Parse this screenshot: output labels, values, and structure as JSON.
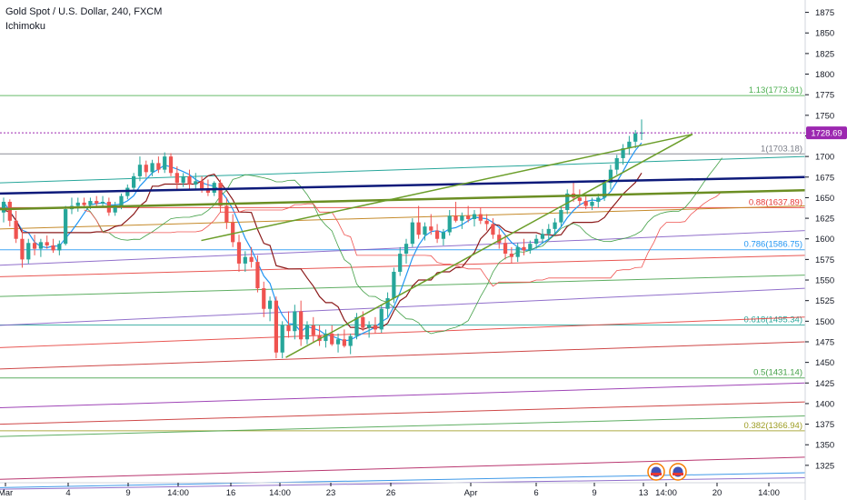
{
  "header": {
    "symbol_title": "Gold Spot / U.S. Dollar, 240, FXCM",
    "indicator": "Ichimoku"
  },
  "colors": {
    "up": "#26a69a",
    "down": "#ef5350",
    "tenkan": "#2196f3",
    "kijun": "#8b1a1a",
    "span_a": "#43a047",
    "span_b": "#ef5350",
    "navy": "#0d1a7a",
    "olive": "#6b8e23",
    "price_tag": "#9c27b0"
  },
  "chart_data": {
    "type": "candlestick",
    "ylim": [
      1305,
      1890
    ],
    "y_ticks": [
      1875,
      1850,
      1825,
      1800,
      1775,
      1750,
      1725,
      1700,
      1675,
      1650,
      1625,
      1600,
      1575,
      1550,
      1525,
      1500,
      1475,
      1450,
      1425,
      1400,
      1375,
      1350,
      1325
    ],
    "x_ticks": [
      "Mar",
      "4",
      "9",
      "14:00",
      "16",
      "14:00",
      "23",
      "26",
      "Apr",
      "6",
      "9",
      "13",
      "14:00",
      "20",
      "14:00"
    ],
    "last_price": "1728.69",
    "fib_levels": [
      {
        "label": "1.13(1773.91)",
        "value": 1773.91,
        "color": "#4caf50"
      },
      {
        "label": "1(1703.18)",
        "value": 1703.18,
        "color": "#787b86"
      },
      {
        "label": "0.88(1637.89)",
        "value": 1637.89,
        "color": "#e53935"
      },
      {
        "label": "0.786(1586.75)",
        "value": 1586.75,
        "color": "#2196f3"
      },
      {
        "label": "0.618(1495.34)",
        "value": 1495.34,
        "color": "#26a69a"
      },
      {
        "label": "0.5(1431.14)",
        "value": 1431.14,
        "color": "#43a047"
      },
      {
        "label": "0.382(1366.94)",
        "value": 1366.94,
        "color": "#9e9d24"
      }
    ],
    "trend_lines": [
      {
        "name": "navy",
        "from": [
          0,
          1655
        ],
        "to": [
          1,
          1675
        ],
        "color": "#0d1a7a"
      },
      {
        "name": "olive",
        "from": [
          0,
          1636
        ],
        "to": [
          1,
          1659
        ],
        "color": "#6b8e23"
      },
      {
        "name": "wedge-upper",
        "from": [
          0.25,
          1598
        ],
        "to": [
          0.86,
          1727
        ],
        "color": "#6b9e2a"
      },
      {
        "name": "wedge-lower",
        "from": [
          0.355,
          1456
        ],
        "to": [
          0.86,
          1727
        ],
        "color": "#6b9e2a"
      }
    ],
    "candles": [
      [
        1632,
        1650,
        1620,
        1645
      ],
      [
        1645,
        1648,
        1615,
        1622
      ],
      [
        1622,
        1634,
        1595,
        1600
      ],
      [
        1600,
        1612,
        1565,
        1575
      ],
      [
        1575,
        1600,
        1570,
        1595
      ],
      [
        1595,
        1605,
        1580,
        1588
      ],
      [
        1588,
        1600,
        1578,
        1596
      ],
      [
        1596,
        1604,
        1588,
        1592
      ],
      [
        1592,
        1600,
        1583,
        1586
      ],
      [
        1586,
        1598,
        1580,
        1594
      ],
      [
        1594,
        1640,
        1592,
        1636
      ],
      [
        1636,
        1650,
        1630,
        1640
      ],
      [
        1640,
        1650,
        1633,
        1644
      ],
      [
        1644,
        1650,
        1637,
        1641
      ],
      [
        1641,
        1650,
        1636,
        1646
      ],
      [
        1646,
        1652,
        1640,
        1643
      ],
      [
        1643,
        1652,
        1638,
        1645
      ],
      [
        1645,
        1650,
        1628,
        1632
      ],
      [
        1632,
        1645,
        1628,
        1640
      ],
      [
        1640,
        1655,
        1636,
        1652
      ],
      [
        1652,
        1666,
        1648,
        1662
      ],
      [
        1662,
        1680,
        1658,
        1676
      ],
      [
        1676,
        1700,
        1670,
        1690
      ],
      [
        1690,
        1695,
        1675,
        1681
      ],
      [
        1681,
        1696,
        1676,
        1692
      ],
      [
        1692,
        1700,
        1680,
        1684
      ],
      [
        1684,
        1705,
        1680,
        1700
      ],
      [
        1700,
        1704,
        1676,
        1680
      ],
      [
        1680,
        1688,
        1660,
        1668
      ],
      [
        1668,
        1680,
        1663,
        1676
      ],
      [
        1676,
        1684,
        1660,
        1666
      ],
      [
        1666,
        1680,
        1660,
        1670
      ],
      [
        1670,
        1676,
        1656,
        1660
      ],
      [
        1660,
        1672,
        1652,
        1656
      ],
      [
        1656,
        1670,
        1652,
        1668
      ],
      [
        1668,
        1672,
        1632,
        1640
      ],
      [
        1640,
        1650,
        1612,
        1620
      ],
      [
        1620,
        1630,
        1590,
        1596
      ],
      [
        1596,
        1605,
        1560,
        1570
      ],
      [
        1570,
        1585,
        1560,
        1578
      ],
      [
        1578,
        1590,
        1565,
        1572
      ],
      [
        1572,
        1580,
        1535,
        1540
      ],
      [
        1540,
        1548,
        1505,
        1515
      ],
      [
        1515,
        1530,
        1500,
        1525
      ],
      [
        1525,
        1530,
        1455,
        1462
      ],
      [
        1462,
        1500,
        1455,
        1495
      ],
      [
        1495,
        1512,
        1480,
        1488
      ],
      [
        1488,
        1520,
        1478,
        1512
      ],
      [
        1512,
        1525,
        1470,
        1478
      ],
      [
        1478,
        1500,
        1472,
        1495
      ],
      [
        1495,
        1505,
        1475,
        1483
      ],
      [
        1483,
        1495,
        1470,
        1476
      ],
      [
        1476,
        1490,
        1468,
        1485
      ],
      [
        1485,
        1495,
        1470,
        1472
      ],
      [
        1472,
        1485,
        1462,
        1478
      ],
      [
        1478,
        1490,
        1468,
        1470
      ],
      [
        1470,
        1485,
        1460,
        1482
      ],
      [
        1482,
        1510,
        1478,
        1505
      ],
      [
        1505,
        1512,
        1488,
        1492
      ],
      [
        1492,
        1500,
        1480,
        1495
      ],
      [
        1495,
        1505,
        1485,
        1490
      ],
      [
        1490,
        1520,
        1486,
        1515
      ],
      [
        1515,
        1535,
        1505,
        1528
      ],
      [
        1528,
        1565,
        1522,
        1560
      ],
      [
        1560,
        1590,
        1555,
        1582
      ],
      [
        1582,
        1600,
        1570,
        1594
      ],
      [
        1594,
        1625,
        1590,
        1620
      ],
      [
        1620,
        1640,
        1600,
        1605
      ],
      [
        1605,
        1620,
        1598,
        1615
      ],
      [
        1615,
        1630,
        1605,
        1610
      ],
      [
        1610,
        1618,
        1595,
        1600
      ],
      [
        1600,
        1612,
        1592,
        1608
      ],
      [
        1608,
        1635,
        1604,
        1628
      ],
      [
        1628,
        1645,
        1620,
        1622
      ],
      [
        1622,
        1632,
        1612,
        1628
      ],
      [
        1628,
        1640,
        1620,
        1624
      ],
      [
        1624,
        1635,
        1615,
        1630
      ],
      [
        1630,
        1638,
        1618,
        1622
      ],
      [
        1622,
        1630,
        1610,
        1618
      ],
      [
        1618,
        1625,
        1600,
        1605
      ],
      [
        1605,
        1612,
        1588,
        1595
      ],
      [
        1595,
        1605,
        1575,
        1582
      ],
      [
        1582,
        1590,
        1570,
        1578
      ],
      [
        1578,
        1595,
        1572,
        1590
      ],
      [
        1590,
        1600,
        1580,
        1586
      ],
      [
        1586,
        1598,
        1582,
        1594
      ],
      [
        1594,
        1605,
        1588,
        1600
      ],
      [
        1600,
        1612,
        1594,
        1606
      ],
      [
        1606,
        1618,
        1598,
        1612
      ],
      [
        1612,
        1625,
        1605,
        1620
      ],
      [
        1620,
        1640,
        1615,
        1635
      ],
      [
        1635,
        1660,
        1630,
        1655
      ],
      [
        1655,
        1670,
        1645,
        1650
      ],
      [
        1650,
        1660,
        1640,
        1646
      ],
      [
        1646,
        1654,
        1636,
        1640
      ],
      [
        1640,
        1650,
        1635,
        1645
      ],
      [
        1645,
        1655,
        1638,
        1650
      ],
      [
        1650,
        1672,
        1646,
        1668
      ],
      [
        1668,
        1690,
        1660,
        1684
      ],
      [
        1684,
        1702,
        1678,
        1698
      ],
      [
        1698,
        1715,
        1690,
        1710
      ],
      [
        1710,
        1725,
        1702,
        1718
      ],
      [
        1718,
        1732,
        1710,
        1728
      ],
      [
        1728,
        1745,
        1720,
        1729
      ]
    ]
  }
}
